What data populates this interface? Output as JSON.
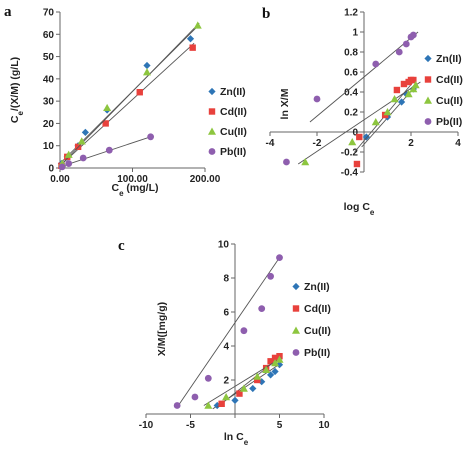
{
  "colors": {
    "Zn(II)": "#2e75b6",
    "Cd(II)": "#e8413c",
    "Cu(II)": "#8dc63f",
    "Pb(II)": "#8e5eae",
    "fit_line": "#555555",
    "axis": "#666666"
  },
  "chart_data": [
    {
      "panel": "a",
      "type": "scatter",
      "xlabel": "Ce (mg/L)",
      "ylabel": "Ce/(X/M) (g/L)",
      "xlim": [
        0,
        200
      ],
      "ylim": [
        0,
        70
      ],
      "xticks": [
        "0.00",
        "100.00",
        "200.00"
      ],
      "yticks": [
        "0",
        "10",
        "20",
        "30",
        "40",
        "50",
        "60",
        "70"
      ],
      "grid": false,
      "legend_position": "right",
      "series": [
        {
          "name": "Zn(II)",
          "marker": "diamond",
          "x": [
            2,
            10,
            25,
            35,
            65,
            120,
            180
          ],
          "y": [
            2,
            5,
            10,
            16,
            26,
            46,
            58
          ],
          "fit": [
            [
              0,
              2
            ],
            [
              188,
              63
            ]
          ]
        },
        {
          "name": "Cd(II)",
          "marker": "square",
          "x": [
            2,
            10,
            25,
            63,
            110,
            183
          ],
          "y": [
            1,
            5,
            9.5,
            20,
            34,
            54
          ],
          "fit": [
            [
              0,
              1
            ],
            [
              185,
              56
            ]
          ]
        },
        {
          "name": "Cu(II)",
          "marker": "triangle",
          "x": [
            3,
            12,
            30,
            65,
            120,
            190
          ],
          "y": [
            2,
            6,
            12,
            27,
            43,
            64
          ],
          "fit": [
            [
              0,
              1
            ],
            [
              192,
              65
            ]
          ]
        },
        {
          "name": "Pb(II)",
          "marker": "circle",
          "x": [
            3,
            12,
            32,
            68,
            125
          ],
          "y": [
            0.5,
            2,
            4.5,
            8,
            14
          ],
          "fit": [
            [
              0,
              0.5
            ],
            [
              125,
              14
            ]
          ]
        }
      ]
    },
    {
      "panel": "b",
      "type": "scatter",
      "xlabel": "log Ce",
      "ylabel": "ln X/M",
      "xlim": [
        -4,
        4
      ],
      "ylim": [
        -0.4,
        1.2
      ],
      "xticks": [
        "-4",
        "-2",
        "0",
        "2",
        "4"
      ],
      "yticks": [
        "-0.4",
        "-0.2",
        "0",
        "0.2",
        "0.4",
        "0.6",
        "0.8",
        "1",
        "1.2"
      ],
      "grid": false,
      "legend_position": "right",
      "series": [
        {
          "name": "Zn(II)",
          "marker": "diamond",
          "x": [
            0.1,
            1.0,
            1.6,
            1.8,
            2.1
          ],
          "y": [
            -0.05,
            0.15,
            0.3,
            0.38,
            0.43
          ],
          "fit": [
            [
              -0.1,
              -0.15
            ],
            [
              2.2,
              0.46
            ]
          ]
        },
        {
          "name": "Cd(II)",
          "marker": "square",
          "x": [
            -0.3,
            -0.2,
            0.9,
            1.4,
            1.7,
            1.9,
            2.0,
            2.1
          ],
          "y": [
            -0.32,
            -0.05,
            0.17,
            0.42,
            0.48,
            0.5,
            0.52,
            0.52
          ],
          "fit": [
            [
              -0.4,
              -0.2
            ],
            [
              2.2,
              0.53
            ]
          ]
        },
        {
          "name": "Cu(II)",
          "marker": "triangle",
          "x": [
            -2.5,
            -0.5,
            0.5,
            1.0,
            1.3,
            1.9,
            2.1,
            2.2
          ],
          "y": [
            -0.3,
            -0.1,
            0.1,
            0.2,
            0.33,
            0.38,
            0.43,
            0.47
          ],
          "fit": [
            [
              -2.8,
              -0.32
            ],
            [
              2.4,
              0.5
            ]
          ]
        },
        {
          "name": "Pb(II)",
          "marker": "circle",
          "x": [
            -3.3,
            -2.0,
            0.5,
            1.5,
            1.8,
            2.0,
            2.1
          ],
          "y": [
            -0.3,
            0.33,
            0.68,
            0.8,
            0.88,
            0.95,
            0.97
          ],
          "fit": [
            [
              -2.3,
              0.1
            ],
            [
              2.3,
              1.0
            ]
          ]
        }
      ]
    },
    {
      "panel": "c",
      "type": "scatter",
      "xlabel": "ln Ce",
      "ylabel": "X/M([mg/g)",
      "xlim": [
        -10,
        10
      ],
      "ylim": [
        0,
        10
      ],
      "xticks": [
        "-10",
        "-5",
        "0",
        "5",
        "10"
      ],
      "yticks": [
        "0",
        "2",
        "4",
        "6",
        "8",
        "10"
      ],
      "grid": false,
      "legend_position": "right",
      "series": [
        {
          "name": "Zn(II)",
          "marker": "diamond",
          "x": [
            -2,
            0,
            2,
            3,
            4,
            4.5,
            5
          ],
          "y": [
            0.5,
            0.8,
            1.5,
            1.9,
            2.3,
            2.5,
            2.9
          ],
          "fit": [
            [
              -2.5,
              0.3
            ],
            [
              5.2,
              3.0
            ]
          ]
        },
        {
          "name": "Cd(II)",
          "marker": "square",
          "x": [
            -1.5,
            0.5,
            2.5,
            3.5,
            4.0,
            4.5,
            5.0
          ],
          "y": [
            0.6,
            1.2,
            2.0,
            2.7,
            3.1,
            3.3,
            3.4
          ],
          "fit": [
            [
              -2,
              0.4
            ],
            [
              5.2,
              3.4
            ]
          ]
        },
        {
          "name": "Cu(II)",
          "marker": "triangle",
          "x": [
            -3,
            -1,
            1,
            2.5,
            3.5,
            4.5,
            5.0
          ],
          "y": [
            0.5,
            1.0,
            1.5,
            2.2,
            2.6,
            3.0,
            3.2
          ],
          "fit": [
            [
              -3.5,
              0.5
            ],
            [
              5.2,
              3.3
            ]
          ]
        },
        {
          "name": "Pb(II)",
          "marker": "circle",
          "x": [
            -6.5,
            -4.5,
            -3.0,
            1.0,
            3.0,
            4.0,
            5.0
          ],
          "y": [
            0.5,
            1.0,
            2.1,
            4.9,
            6.2,
            8.1,
            9.2
          ],
          "fit": [
            [
              -6.5,
              0.4
            ],
            [
              5.0,
              9.2
            ]
          ]
        }
      ]
    }
  ]
}
